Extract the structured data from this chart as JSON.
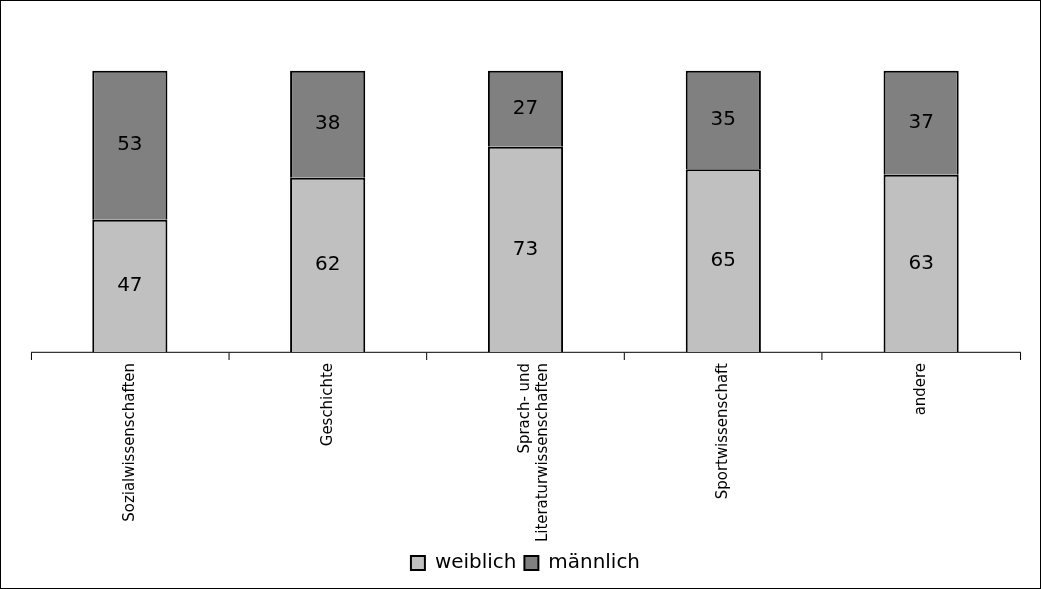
{
  "chart_data": {
    "type": "bar",
    "stacked": true,
    "data_labels": true,
    "legend": "bottom",
    "grid": false,
    "tick_labels": "x",
    "categories": [
      "Sozialwissenschaften",
      "Geschichte",
      "Sprach- und Literaturwissenschaften",
      "Sportwissenschaft",
      "andere"
    ],
    "ylim": [
      0,
      100
    ],
    "series": [
      {
        "name": "weiblich",
        "color": "#c0c0c0",
        "values": [
          47,
          62,
          73,
          65,
          63
        ]
      },
      {
        "name": "männlich",
        "color": "#808080",
        "values": [
          53,
          38,
          27,
          35,
          37
        ]
      }
    ]
  }
}
